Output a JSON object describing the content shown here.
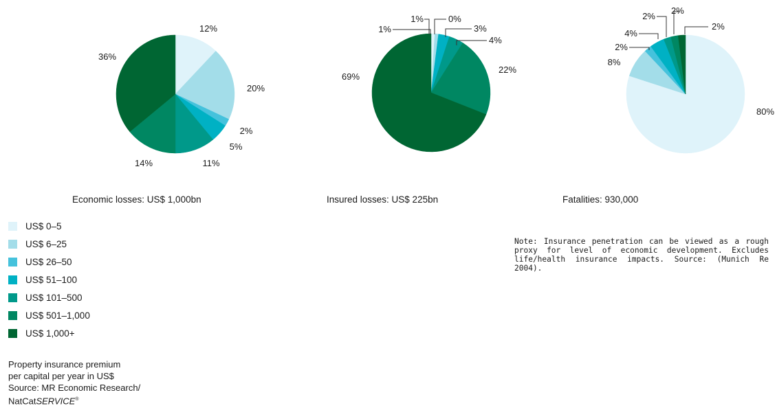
{
  "chart_data": [
    {
      "type": "pie",
      "title": "Economic losses: US$ 1,000bn",
      "categories": [
        "US$ 0–5",
        "US$ 6–25",
        "US$ 26–50",
        "US$ 51–100",
        "US$ 101–500",
        "US$ 501–1,000",
        "US$ 1,000+"
      ],
      "values": [
        12,
        20,
        2,
        5,
        11,
        14,
        36
      ],
      "labels": [
        "12%",
        "20%",
        "2%",
        "5%",
        "11%",
        "14%",
        "36%"
      ]
    },
    {
      "type": "pie",
      "title": "Insured losses: US$ 225bn",
      "categories": [
        "US$ 0–5",
        "US$ 6–25",
        "US$ 26–50",
        "US$ 51–100",
        "US$ 101–500",
        "US$ 501–1,000",
        "US$ 1,000+"
      ],
      "values": [
        1,
        1,
        0,
        3,
        4,
        22,
        69
      ],
      "labels": [
        "1%",
        "1%",
        "0%",
        "3%",
        "4%",
        "22%",
        "69%"
      ]
    },
    {
      "type": "pie",
      "title": "Fatalities: 930,000",
      "categories": [
        "US$ 0–5",
        "US$ 6–25",
        "US$ 26–50",
        "US$ 51–100",
        "US$ 101–500",
        "US$ 501–1,000",
        "US$ 1,000+"
      ],
      "values": [
        80,
        8,
        2,
        4,
        2,
        2,
        2
      ],
      "labels": [
        "80%",
        "8%",
        "2%",
        "4%",
        "2%",
        "2%",
        "2%"
      ]
    }
  ],
  "legend": {
    "items": [
      {
        "label": "US$ 0–5",
        "color": "#dff3fa"
      },
      {
        "label": "US$ 6–25",
        "color": "#a3dde9"
      },
      {
        "label": "US$ 26–50",
        "color": "#45c2dc"
      },
      {
        "label": "US$ 51–100",
        "color": "#00b1c4"
      },
      {
        "label": "US$ 101–500",
        "color": "#00998a"
      },
      {
        "label": "US$ 501–1,000",
        "color": "#008762"
      },
      {
        "label": "US$ 1,000+",
        "color": "#006633"
      }
    ]
  },
  "source": {
    "line1": "Property insurance premium",
    "line2": "per capital per year in US$",
    "line3": "Source: MR Economic Research/",
    "line4_prefix": "NatCat",
    "line4_italic": "SERVICE",
    "line4_sup": "®"
  },
  "note": "Note: Insurance penetration can be viewed as a rough proxy for level of economic development. Excludes life/health insurance impacts.  Source: (Munich Re 2004)."
}
